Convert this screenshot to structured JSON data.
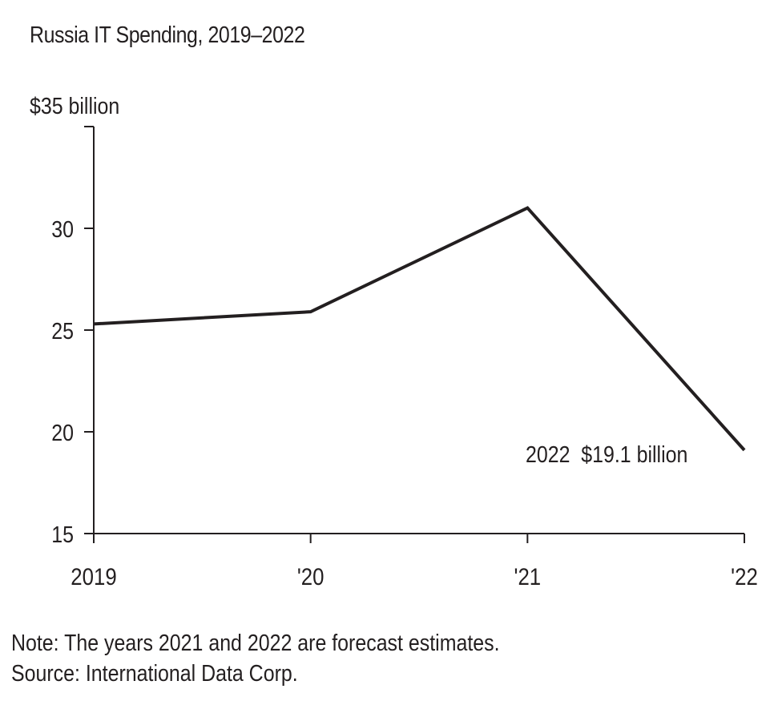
{
  "chart_data": {
    "type": "line",
    "title": "Russia IT Spending, 2019–2022",
    "ylabel": "$35 billion",
    "xlabel": "",
    "categories": [
      "2019",
      "'20",
      "'21",
      "'22"
    ],
    "series": [
      {
        "name": "Russia IT Spending",
        "values": [
          25.3,
          25.9,
          31.0,
          19.1
        ]
      }
    ],
    "ylim": [
      15,
      35
    ],
    "yticks": [
      15,
      20,
      25,
      30,
      35
    ],
    "ytick_labels": [
      "15",
      "20",
      "25",
      "30",
      "$35 billion"
    ],
    "grid": false,
    "annotation": {
      "text": "2022  $19.1 billion",
      "index": 3
    },
    "line_color": "#231f20"
  },
  "footer": {
    "note": "Note: The years 2021 and 2022 are forecast estimates.",
    "source": "Source: International Data Corp."
  }
}
